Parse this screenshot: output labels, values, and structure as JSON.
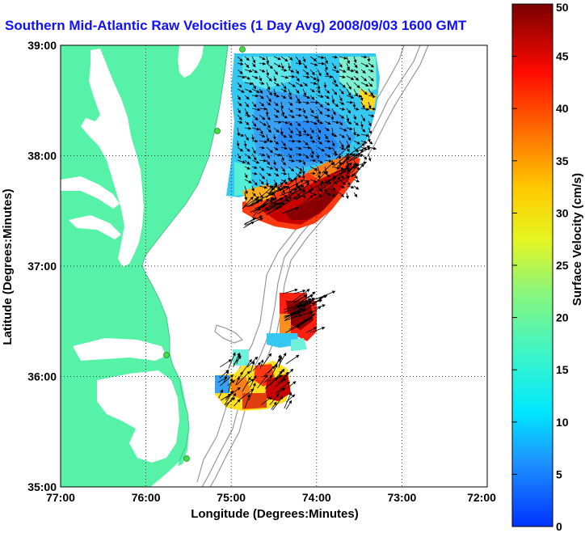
{
  "title": "Southern Mid-Atlantic Raw Velocities (1 Day Avg) 2008/09/03 1600 GMT",
  "xlabel": "Longitude (Degrees:Minutes)",
  "ylabel": "Latitude (Degrees:Minutes)",
  "x_ticks": [
    "77:00",
    "76:00",
    "75:00",
    "74:00",
    "73:00",
    "72:00"
  ],
  "y_ticks": [
    "39:00",
    "38:00",
    "37:00",
    "36:00",
    "35:00"
  ],
  "colorbar": {
    "label": "Surface Velocity (cm/s)",
    "ticks": [
      "0",
      "5",
      "10",
      "15",
      "20",
      "25",
      "30",
      "35",
      "40",
      "45",
      "50"
    ],
    "range": [
      0,
      50
    ],
    "colormap": "jet"
  },
  "colors": {
    "land": "#55f2a8",
    "title": "#1010ff",
    "bathymetry": "#909090",
    "arrows": "#000000",
    "stations": "#44dd44"
  },
  "map_extent": {
    "lon": [
      -77,
      -72
    ],
    "lat": [
      35,
      39
    ]
  }
}
